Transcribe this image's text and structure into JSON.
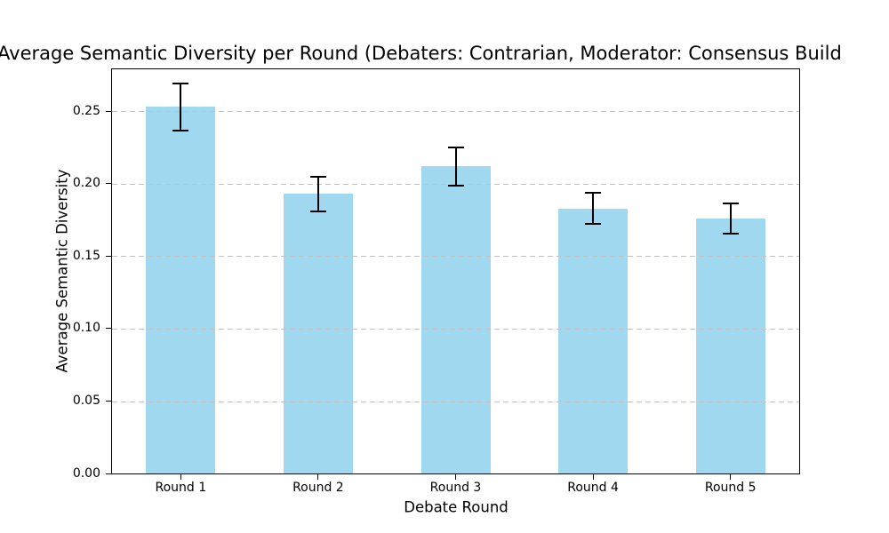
{
  "chart_data": {
    "type": "bar",
    "title": "Average Semantic Diversity per Round (Debaters: Contrarian, Moderator: Consensus Build",
    "xlabel": "Debate Round",
    "ylabel": "Average Semantic Diversity",
    "categories": [
      "Round 1",
      "Round 2",
      "Round 3",
      "Round 4",
      "Round 5"
    ],
    "values": [
      0.253,
      0.193,
      0.212,
      0.183,
      0.176
    ],
    "errors": [
      0.0165,
      0.012,
      0.0133,
      0.0107,
      0.0105
    ],
    "yticks": [
      0,
      0.05,
      0.1,
      0.15,
      0.2,
      0.25
    ],
    "ytick_labels": [
      "0.00",
      "0.05",
      "0.10",
      "0.15",
      "0.20",
      "0.25"
    ],
    "ylim": [
      0,
      0.279
    ],
    "grid": "horizontal-dashed",
    "grid_over_bars": true,
    "legend": "none",
    "colors": {
      "bar": "#9FD8EF",
      "error": "#000000",
      "grid": "#c3c3c3",
      "spine": "#000000",
      "text": "#000000"
    }
  }
}
